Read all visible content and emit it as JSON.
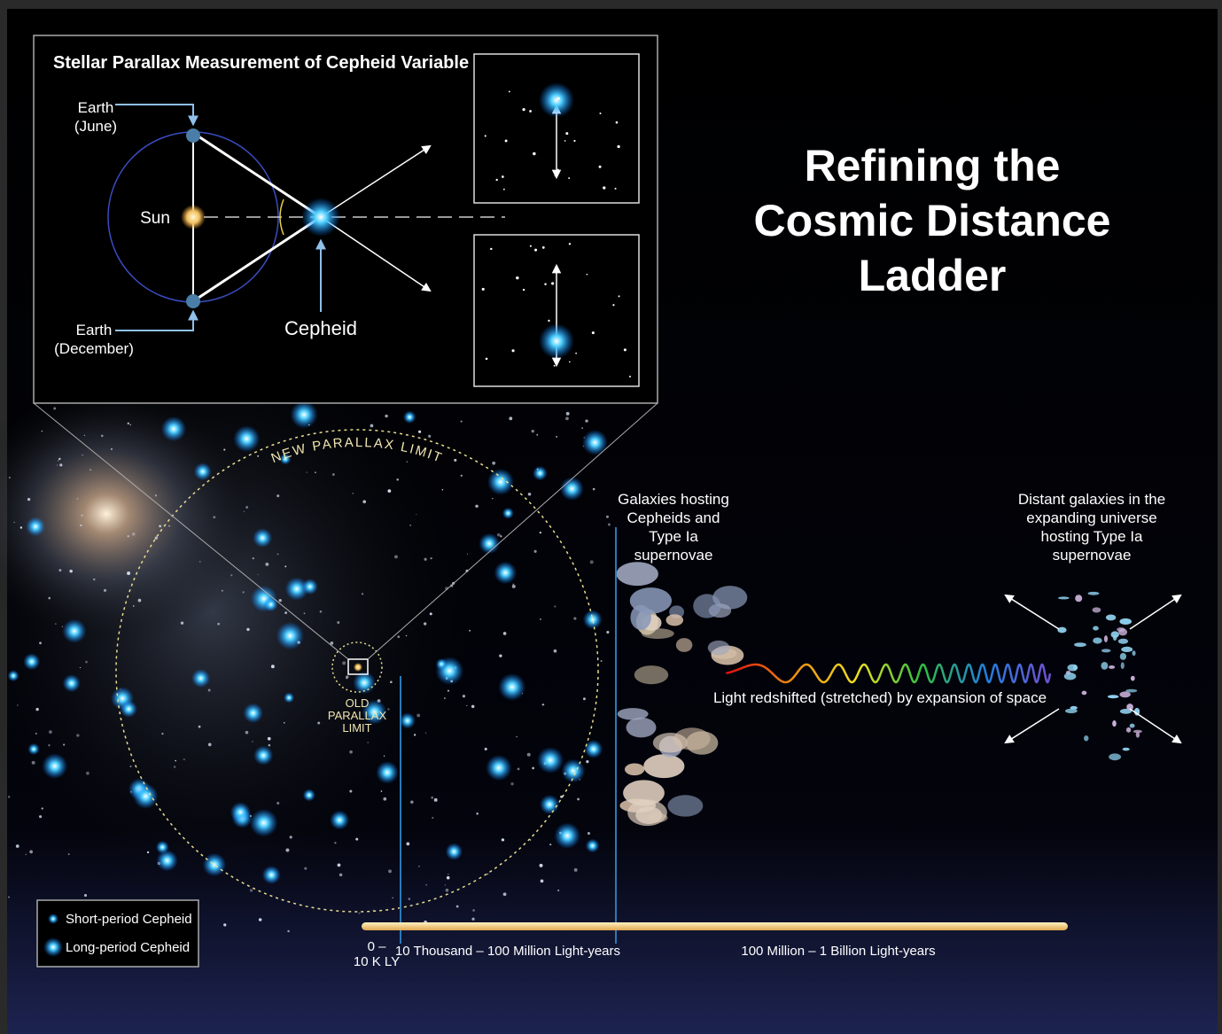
{
  "title_lines": [
    "Refining the",
    "Cosmic Distance",
    "Ladder"
  ],
  "inset": {
    "title": "Stellar Parallax Measurement of Cepheid Variable",
    "earth_june": [
      "Earth",
      "(June)"
    ],
    "sun": "Sun",
    "earth_december": [
      "Earth",
      "(December)"
    ],
    "cepheid": "Cepheid"
  },
  "parallax": {
    "new_limit": "NEW PARALLAX LIMIT",
    "old_limit": [
      "OLD",
      "PARALLAX",
      "LIMIT"
    ]
  },
  "galaxies_near": [
    "Galaxies hosting",
    "Cepheids and",
    "Type Ia",
    "supernovae"
  ],
  "galaxies_far": [
    "Distant galaxies in the",
    "expanding universe",
    "hosting Type Ia",
    "supernovae"
  ],
  "redshift": "Light redshifted (stretched) by expansion of space",
  "legend": [
    "Short-period Cepheid",
    "Long-period Cepheid"
  ],
  "scale": {
    "near": [
      "0 –",
      "10 K LY"
    ],
    "mid": "10 Thousand – 100 Million Light-years",
    "far": "100 Million – 1 Billion Light-years"
  }
}
